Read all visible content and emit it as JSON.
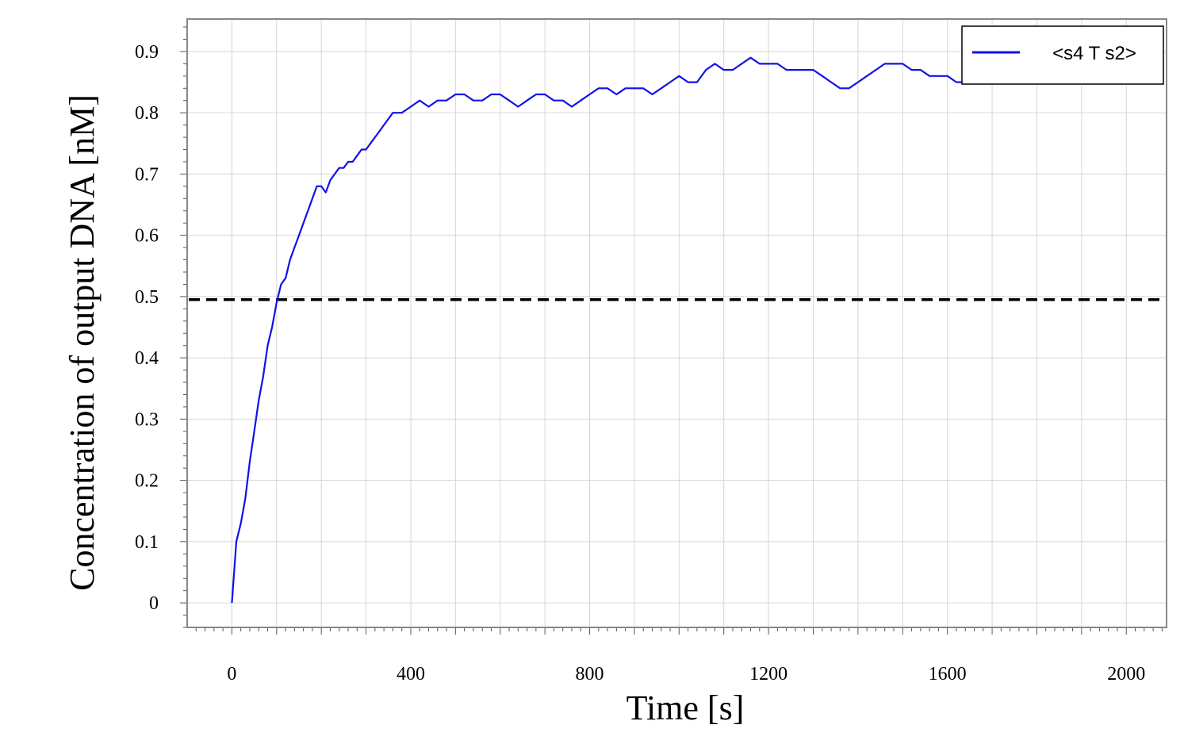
{
  "chart_data": {
    "type": "line",
    "title": "",
    "xlabel": "Time [s]",
    "ylabel": "Concentration of output DNA [nM]",
    "xlim": [
      -100,
      2090
    ],
    "ylim": [
      -0.04,
      0.953
    ],
    "xticks": [
      0,
      400,
      800,
      1200,
      1600,
      2000
    ],
    "xtick_labels": [
      "0",
      "400",
      "800",
      "1200",
      "1600",
      "2000"
    ],
    "yticks": [
      0,
      0.1,
      0.2,
      0.3,
      0.4,
      0.5,
      0.6,
      0.7,
      0.8,
      0.9
    ],
    "ytick_labels": [
      "0",
      "0.1",
      "0.2",
      "0.3",
      "0.4",
      "0.5",
      "0.6",
      "0.7",
      "0.8",
      "0.9"
    ],
    "grid": true,
    "legend_position": "top-right",
    "threshold": {
      "y": 0.495,
      "style": "dashed",
      "color": "#000000"
    },
    "series": [
      {
        "name": "<s4 T s2>",
        "color": "#1010ee",
        "x": [
          0,
          10,
          20,
          30,
          40,
          50,
          60,
          70,
          80,
          90,
          100,
          110,
          120,
          130,
          140,
          150,
          160,
          170,
          180,
          190,
          200,
          210,
          220,
          230,
          240,
          250,
          260,
          270,
          280,
          290,
          300,
          310,
          320,
          330,
          340,
          350,
          360,
          380,
          400,
          420,
          440,
          460,
          480,
          500,
          520,
          540,
          560,
          580,
          600,
          620,
          640,
          660,
          680,
          700,
          720,
          740,
          760,
          780,
          800,
          820,
          840,
          860,
          880,
          900,
          920,
          940,
          960,
          980,
          1000,
          1020,
          1040,
          1060,
          1080,
          1100,
          1120,
          1140,
          1160,
          1180,
          1200,
          1220,
          1240,
          1260,
          1280,
          1300,
          1320,
          1340,
          1360,
          1380,
          1400,
          1420,
          1440,
          1460,
          1480,
          1500,
          1520,
          1540,
          1560,
          1580,
          1600,
          1620,
          1640,
          1660
        ],
        "values": [
          0.0,
          0.1,
          0.13,
          0.17,
          0.23,
          0.28,
          0.33,
          0.37,
          0.42,
          0.45,
          0.49,
          0.52,
          0.53,
          0.56,
          0.58,
          0.6,
          0.62,
          0.64,
          0.66,
          0.68,
          0.68,
          0.67,
          0.69,
          0.7,
          0.71,
          0.71,
          0.72,
          0.72,
          0.73,
          0.74,
          0.74,
          0.75,
          0.76,
          0.77,
          0.78,
          0.79,
          0.8,
          0.8,
          0.81,
          0.82,
          0.81,
          0.82,
          0.82,
          0.83,
          0.83,
          0.82,
          0.82,
          0.83,
          0.83,
          0.82,
          0.81,
          0.82,
          0.83,
          0.83,
          0.82,
          0.82,
          0.81,
          0.82,
          0.83,
          0.84,
          0.84,
          0.83,
          0.84,
          0.84,
          0.84,
          0.83,
          0.84,
          0.85,
          0.86,
          0.85,
          0.85,
          0.87,
          0.88,
          0.87,
          0.87,
          0.88,
          0.89,
          0.88,
          0.88,
          0.88,
          0.87,
          0.87,
          0.87,
          0.87,
          0.86,
          0.85,
          0.84,
          0.84,
          0.85,
          0.86,
          0.87,
          0.88,
          0.88,
          0.88,
          0.87,
          0.87,
          0.86,
          0.86,
          0.86,
          0.85,
          0.85,
          0.85
        ]
      }
    ]
  }
}
